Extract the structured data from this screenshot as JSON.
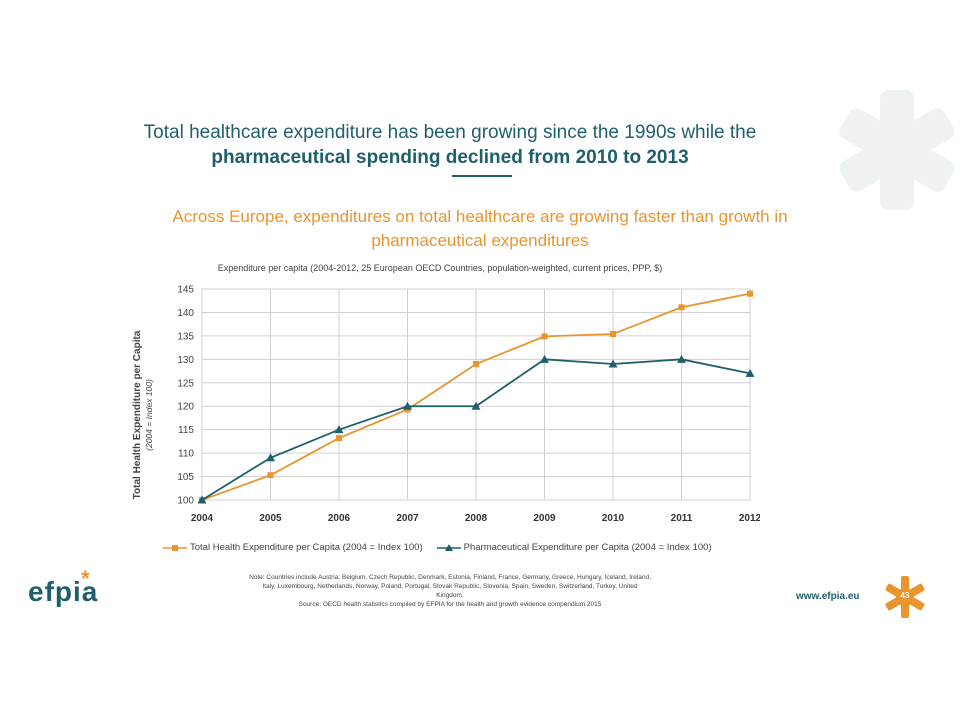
{
  "slide": {
    "title_line1": "Total healthcare expenditure has been growing since the 1990s while the",
    "title_line2": "pharmaceutical spending declined from 2010 to 2013",
    "subtitle": "Across Europe, expenditures on total healthcare are growing faster than growth in pharmaceutical expenditures",
    "chart_caption": "Expenditure per capita (2004-2012,  25  European OECD Countries, population-weighted, current prices, PPP, $)",
    "note_line1": "Note:   Countries include Austria, Belgium, Czech Republic, Denmark, Estonia, Finland, France, Germany, Greece, Hungary, Iceland, Ireland,",
    "note_line2": "Italy, Luxembourg, Netherlands, Norway, Poland, Portugal, Slovak Republic, Slovenia, Spain, Sweden, Switzerland, Turkey, United",
    "note_line3": "Kingdom.",
    "source": "Source: OECD health statistics compiled by EFPIA for the health and growth evidence compendium 2015",
    "logo_text": "efpia",
    "url": "www.efpia.eu",
    "page_number": "43",
    "colors": {
      "teal": "#1f5f6b",
      "orange": "#e8952e"
    }
  },
  "chart_data": {
    "type": "line",
    "title": "Expenditure per capita (2004-2012,  25  European OECD Countries, population-weighted, current prices, PPP, $)",
    "xlabel": "",
    "ylabel": "Total Health Expenditure per Capita",
    "ylabel_sub": "(2004 = Index 100)",
    "categories": [
      "2004",
      "2005",
      "2006",
      "2007",
      "2008",
      "2009",
      "2010",
      "2011",
      "2012"
    ],
    "ylim": [
      100,
      145
    ],
    "yticks": [
      100,
      105,
      110,
      115,
      120,
      125,
      130,
      135,
      140,
      145
    ],
    "grid": true,
    "legend_position": "bottom",
    "series": [
      {
        "name": "Total Health Expenditure per Capita (2004 = Index 100)",
        "color": "#e8952e",
        "marker": "square",
        "values": [
          100,
          105.3,
          113.2,
          119.3,
          129,
          134.9,
          135.4,
          141.1,
          144
        ]
      },
      {
        "name": "Pharmaceutical Expenditure per Capita (2004 = Index 100)",
        "color": "#1f5f6b",
        "marker": "triangle",
        "values": [
          100,
          109,
          115,
          120,
          120,
          130,
          129,
          130,
          127
        ]
      }
    ]
  }
}
